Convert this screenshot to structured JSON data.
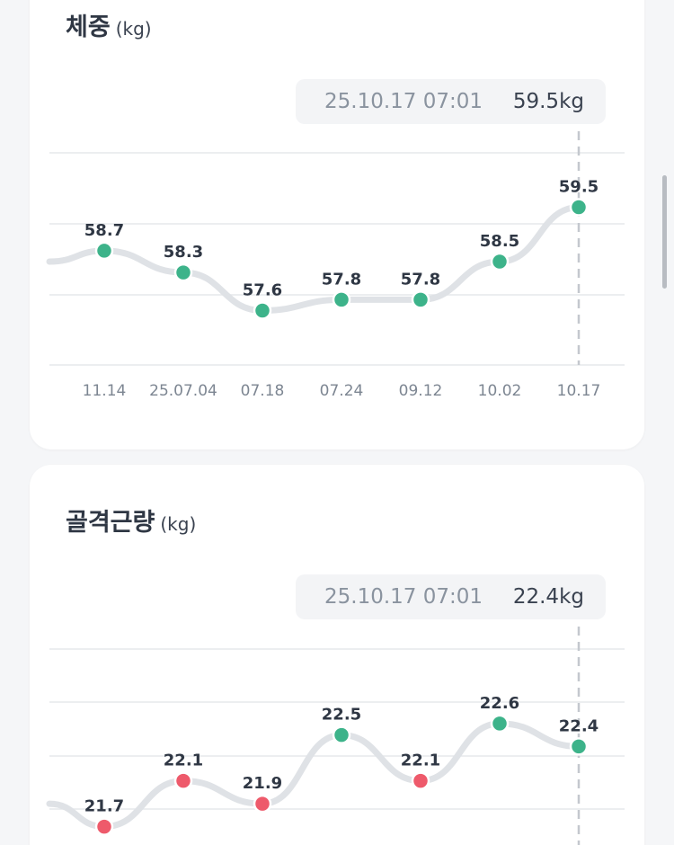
{
  "charts": [
    {
      "title": "체중",
      "unit": "(kg)",
      "tooltip": {
        "date": "25.10.17 07:01",
        "value": "59.5kg"
      },
      "colors": {
        "normal": "#3db38a",
        "low": "#ee5a6b",
        "line": "#dfe2e6",
        "grid": "#e6e8eb"
      }
    },
    {
      "title": "골격근량",
      "unit": "(kg)",
      "tooltip": {
        "date": "25.10.17 07:01",
        "value": "22.4kg"
      },
      "colors": {
        "normal": "#3db38a",
        "low": "#ee5a6b",
        "line": "#dfe2e6",
        "grid": "#e6e8eb"
      }
    }
  ],
  "chart_data": [
    {
      "type": "line",
      "title": "체중",
      "ylabel": "(kg)",
      "x": [
        "11.14",
        "25.07.04",
        "07.18",
        "07.24",
        "09.12",
        "10.02",
        "10.17"
      ],
      "values": [
        58.7,
        58.3,
        57.6,
        57.8,
        57.8,
        58.5,
        59.5
      ],
      "status": [
        "normal",
        "normal",
        "normal",
        "normal",
        "normal",
        "normal",
        "normal"
      ],
      "leading_value": 58.5,
      "ylim": [
        56.6,
        60.5
      ],
      "grid": true
    },
    {
      "type": "line",
      "title": "골격근량",
      "ylabel": "(kg)",
      "x": [
        "11.14",
        "25.07.04",
        "07.18",
        "07.24",
        "09.12",
        "10.02",
        "10.17"
      ],
      "values": [
        21.7,
        22.1,
        21.9,
        22.5,
        22.1,
        22.6,
        22.4
      ],
      "status": [
        "low",
        "low",
        "low",
        "normal",
        "low",
        "normal",
        "normal"
      ],
      "leading_value": 21.9,
      "ylim": [
        21.25,
        23.25
      ],
      "grid": true
    }
  ]
}
